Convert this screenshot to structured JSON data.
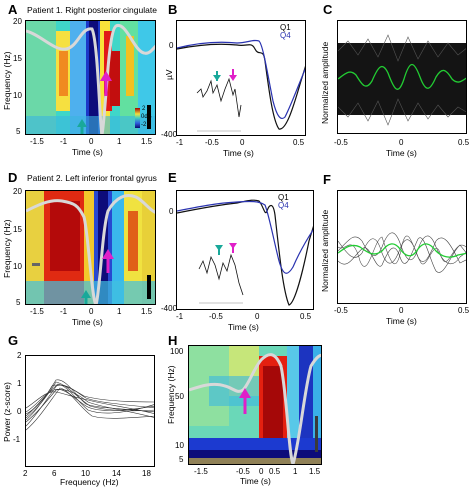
{
  "panels": {
    "A": {
      "label": "A",
      "title": "Patient 1. Right posterior cingulate",
      "yticks": [
        "20",
        "15",
        "10",
        "5"
      ],
      "xticks": [
        "-1.5",
        "-1",
        "0",
        "1",
        "1.5"
      ],
      "xlabel": "Time (s)",
      "ylabel": "Frequency (Hz)",
      "colorbar": [
        "2",
        "0dB",
        "-2"
      ]
    },
    "B": {
      "label": "B",
      "yticks": [
        "0",
        "-400"
      ],
      "xticks": [
        "-1",
        "-0.5",
        "0",
        "0.5"
      ],
      "xlabel": "Time (s)",
      "ylabel": "µV",
      "legend": [
        "Q1",
        "Q4"
      ]
    },
    "C": {
      "label": "C",
      "xticks": [
        "-0.5",
        "0",
        "0.5"
      ],
      "xlabel": "Time (s)",
      "ylabel": "Normalized amplitude"
    },
    "D": {
      "label": "D",
      "title": "Patient 2. Left inferior frontal gyrus",
      "yticks": [
        "20",
        "15",
        "10",
        "5"
      ],
      "xticks": [
        "-1.5",
        "-1",
        "0",
        "1",
        "1.5"
      ],
      "xlabel": "Time (s)",
      "ylabel": "Frequency (Hz)"
    },
    "E": {
      "label": "E",
      "yticks": [
        "0",
        "-400"
      ],
      "xticks": [
        "-1",
        "-0.5",
        "0",
        "0.5"
      ],
      "xlabel": "Time (s)",
      "legend": [
        "Q1",
        "Q4"
      ]
    },
    "F": {
      "label": "F",
      "xticks": [
        "-0.5",
        "0",
        "0.5"
      ],
      "xlabel": "Time (s)",
      "ylabel": "Normalized amplitude"
    },
    "G": {
      "label": "G",
      "yticks": [
        "2",
        "1",
        "0",
        "-1"
      ],
      "xticks": [
        "2",
        "6",
        "10",
        "14",
        "18"
      ],
      "xlabel": "Frequency (Hz)",
      "ylabel": "Power (z-score)"
    },
    "H": {
      "label": "H",
      "yticks": [
        "100",
        "50",
        "10",
        "5"
      ],
      "xticks": [
        "-1.5",
        "-0.5",
        "0",
        "0.5",
        "1",
        "1.5"
      ],
      "xlabel": "Time (s)",
      "ylabel": "Frequency (Hz)"
    }
  },
  "colors": {
    "q1_trace": "#111111",
    "q4_trace": "#2a33b0",
    "theta_overlay": "#d8d8d8",
    "mean_green": "#22cc33",
    "teal_arrow": "#19a89a",
    "magenta_arrow": "#e020c8"
  }
}
